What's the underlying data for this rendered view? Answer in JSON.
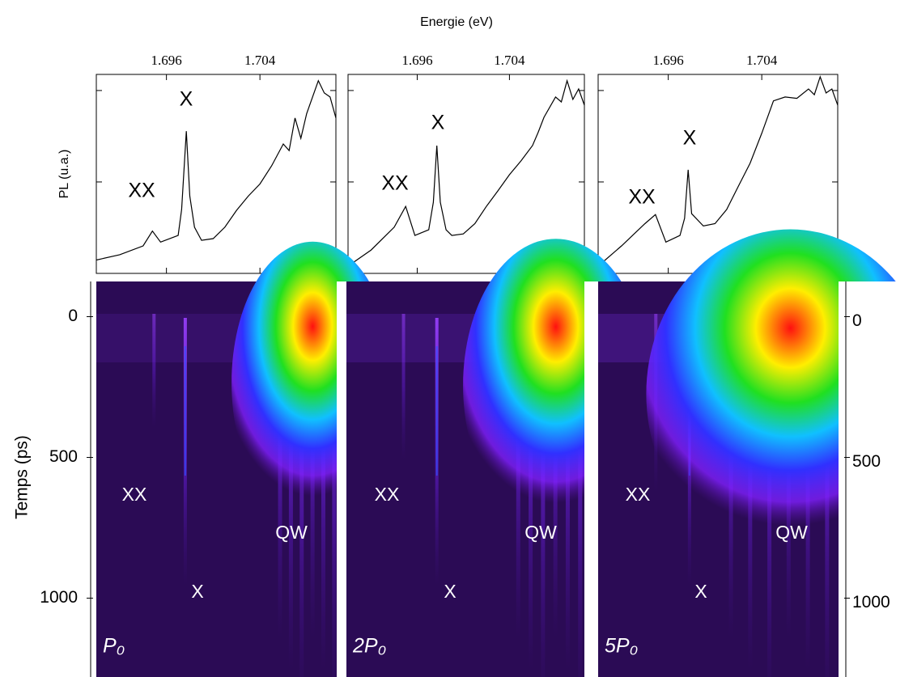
{
  "chart_data": [
    {
      "type": "line",
      "x_label": "Energie (eV)",
      "y_label": "PL (u.a.)",
      "log_y": true,
      "color": "#000000",
      "xlim": [
        1.69,
        1.7105
      ],
      "xticks": [
        1.696,
        1.704
      ],
      "ylim": [
        1,
        150
      ],
      "yticks": [
        10,
        100
      ],
      "panels": [
        {
          "annotations": [
            "XX",
            "X"
          ],
          "x": [
            1.69,
            1.692,
            1.694,
            1.6948,
            1.6955,
            1.697,
            1.6973,
            1.6977,
            1.698,
            1.6984,
            1.699,
            1.7,
            1.701,
            1.702,
            1.703,
            1.704,
            1.705,
            1.706,
            1.7065,
            1.707,
            1.7075,
            1.708,
            1.709,
            1.7095,
            1.71,
            1.7105
          ],
          "values": [
            1.4,
            1.6,
            2.0,
            2.9,
            2.2,
            2.6,
            5,
            36,
            7,
            3.2,
            2.3,
            2.4,
            3.2,
            4.9,
            7,
            9.5,
            15,
            26,
            22,
            50,
            30,
            56,
            128,
            94,
            85,
            50
          ]
        },
        {
          "annotations": [
            "XX",
            "X"
          ],
          "x": [
            1.69,
            1.692,
            1.694,
            1.695,
            1.6958,
            1.697,
            1.6974,
            1.6977,
            1.698,
            1.6985,
            1.699,
            1.7,
            1.701,
            1.702,
            1.703,
            1.704,
            1.705,
            1.706,
            1.7065,
            1.707,
            1.708,
            1.7085,
            1.709,
            1.7095,
            1.71,
            1.7105
          ],
          "values": [
            1.2,
            1.8,
            3.2,
            5.4,
            2.6,
            3,
            6,
            25,
            6,
            3,
            2.6,
            2.7,
            3.5,
            5.4,
            8,
            12,
            17,
            25,
            35,
            51,
            85,
            75,
            128,
            80,
            104,
            69
          ]
        },
        {
          "annotations": [
            "XX",
            "X"
          ],
          "x": [
            1.69,
            1.692,
            1.694,
            1.6949,
            1.6958,
            1.697,
            1.6974,
            1.6977,
            1.698,
            1.699,
            1.7,
            1.701,
            1.702,
            1.703,
            1.704,
            1.705,
            1.706,
            1.707,
            1.708,
            1.7085,
            1.709,
            1.7095,
            1.71,
            1.7105
          ],
          "values": [
            1.2,
            2.0,
            3.5,
            4.4,
            2.2,
            2.6,
            4,
            13.6,
            4.5,
            3.3,
            3.5,
            5,
            9,
            16,
            34,
            77,
            85,
            82,
            104,
            90,
            141,
            94,
            104,
            69
          ]
        }
      ]
    },
    {
      "type": "image",
      "y_label": "Temps (ps)",
      "ylim": [
        -125,
        1280
      ],
      "yticks": [
        0,
        500,
        1000
      ],
      "panels": [
        {
          "label": "P₀",
          "annotations": [
            "XX",
            "QW",
            "X"
          ]
        },
        {
          "label": "2P₀",
          "annotations": [
            "XX",
            "QW",
            "X"
          ]
        },
        {
          "label": "5P₀",
          "annotations": [
            "XX",
            "QW",
            "X"
          ]
        }
      ]
    }
  ]
}
